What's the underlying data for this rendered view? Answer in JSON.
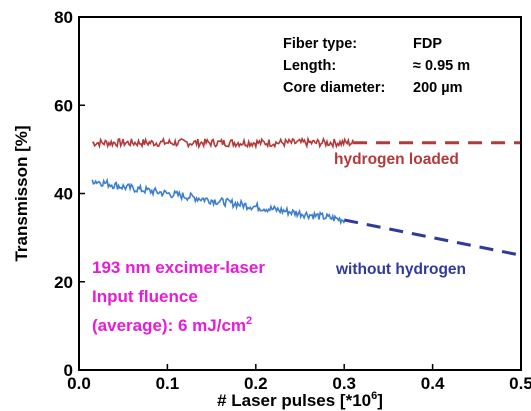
{
  "chart_data": {
    "type": "line",
    "xlabel": "# Laser pulses [*10",
    "xlabel_sup": "6",
    "xlabel_end": "]",
    "ylabel": "Transmisson [%]",
    "xlim": [
      0.0,
      0.5
    ],
    "ylim": [
      0,
      80
    ],
    "x_ticks": [
      "0.0",
      "0.1",
      "0.2",
      "0.3",
      "0.4",
      "0.5"
    ],
    "y_ticks": [
      "0",
      "20",
      "40",
      "60",
      "80"
    ],
    "grid": false,
    "info_box": [
      {
        "key": "Fiber type:",
        "value": "FDP"
      },
      {
        "key": "Length:",
        "value": "≈ 0.95 m"
      },
      {
        "key": "Core diameter:",
        "value": "200 µm"
      }
    ],
    "series": [
      {
        "name": "hydrogen loaded",
        "color": "#b33a3a",
        "measured_x": [
          0.015,
          0.05,
          0.1,
          0.15,
          0.2,
          0.25,
          0.31
        ],
        "measured_y": [
          51.5,
          51.5,
          51.5,
          51.5,
          51.5,
          51.5,
          51.5
        ],
        "trend_x": [
          0.31,
          0.5
        ],
        "trend_y": [
          51.5,
          51.5
        ]
      },
      {
        "name": "without hydrogen",
        "color": "#2e3a9e",
        "measured_color": "#3d7fcf",
        "measured_x": [
          0.015,
          0.05,
          0.1,
          0.15,
          0.2,
          0.25,
          0.3
        ],
        "measured_y": [
          43.0,
          41.5,
          40.0,
          38.5,
          37.0,
          35.5,
          34.0
        ],
        "trend_x": [
          0.3,
          0.5
        ],
        "trend_y": [
          34.0,
          26.0
        ]
      }
    ],
    "annotation": {
      "lines": [
        "193 nm excimer-laser",
        "Input fluence",
        "(average): 6 mJ/cm"
      ],
      "sup": "2",
      "color": "#e81bd6"
    }
  }
}
